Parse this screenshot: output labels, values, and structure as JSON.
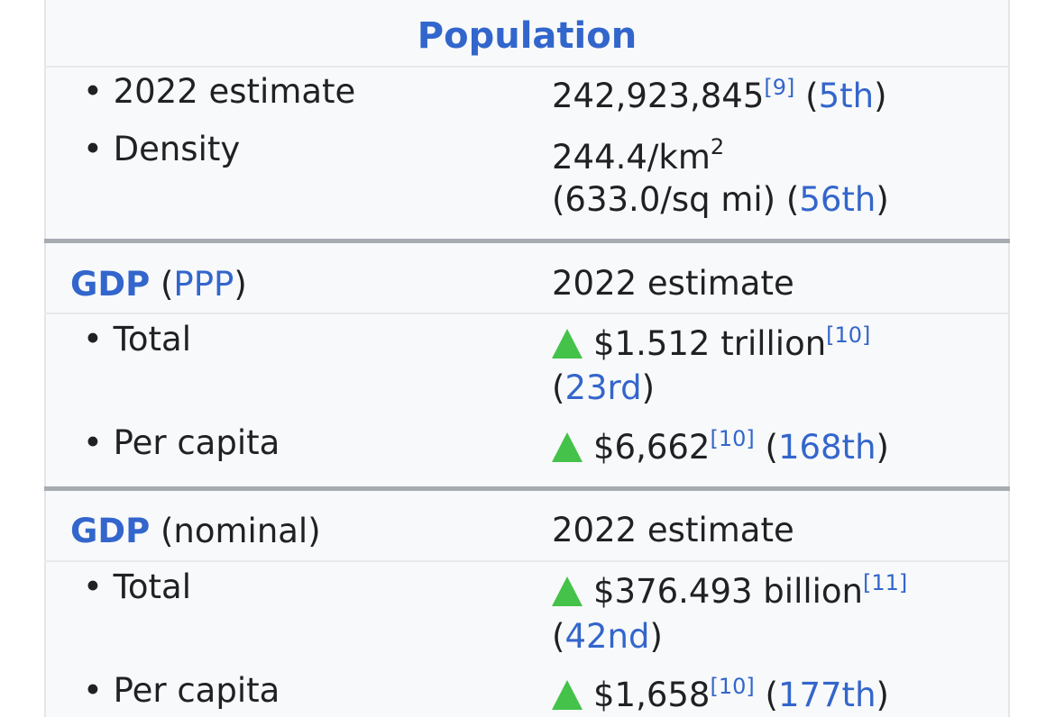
{
  "population": {
    "header": "Population",
    "estimate_label": "• 2022 estimate",
    "estimate_value": "242,923,845",
    "estimate_ref": "[9]",
    "estimate_rank": "5th",
    "density_label": "• Density",
    "density_value": "244.4/km",
    "density_sup": "2",
    "density_imperial": "(633.0/sq mi)",
    "density_rank": "56th"
  },
  "gdp_ppp": {
    "label_bold": "GDP",
    "label_link": "PPP",
    "year": "2022 estimate",
    "total_label": "• Total",
    "total_value": "$1.512 trillion",
    "total_ref": "[10]",
    "total_rank": "23rd",
    "per_capita_label": "• Per capita",
    "per_capita_value": "$6,662",
    "per_capita_ref": "[10]",
    "per_capita_rank": "168th"
  },
  "gdp_nominal": {
    "label_bold": "GDP",
    "label_rest": "(nominal)",
    "year": "2022 estimate",
    "total_label": "• Total",
    "total_value": "$376.493 billion",
    "total_ref": "[11]",
    "total_rank": "42nd",
    "per_capita_label": "• Per capita",
    "per_capita_value": "$1,658",
    "per_capita_ref": "[10]",
    "per_capita_rank": "177th"
  },
  "colors": {
    "link": "#3366cc",
    "increase": "#44c24a",
    "text": "#202122",
    "background": "#f8f9fa"
  }
}
